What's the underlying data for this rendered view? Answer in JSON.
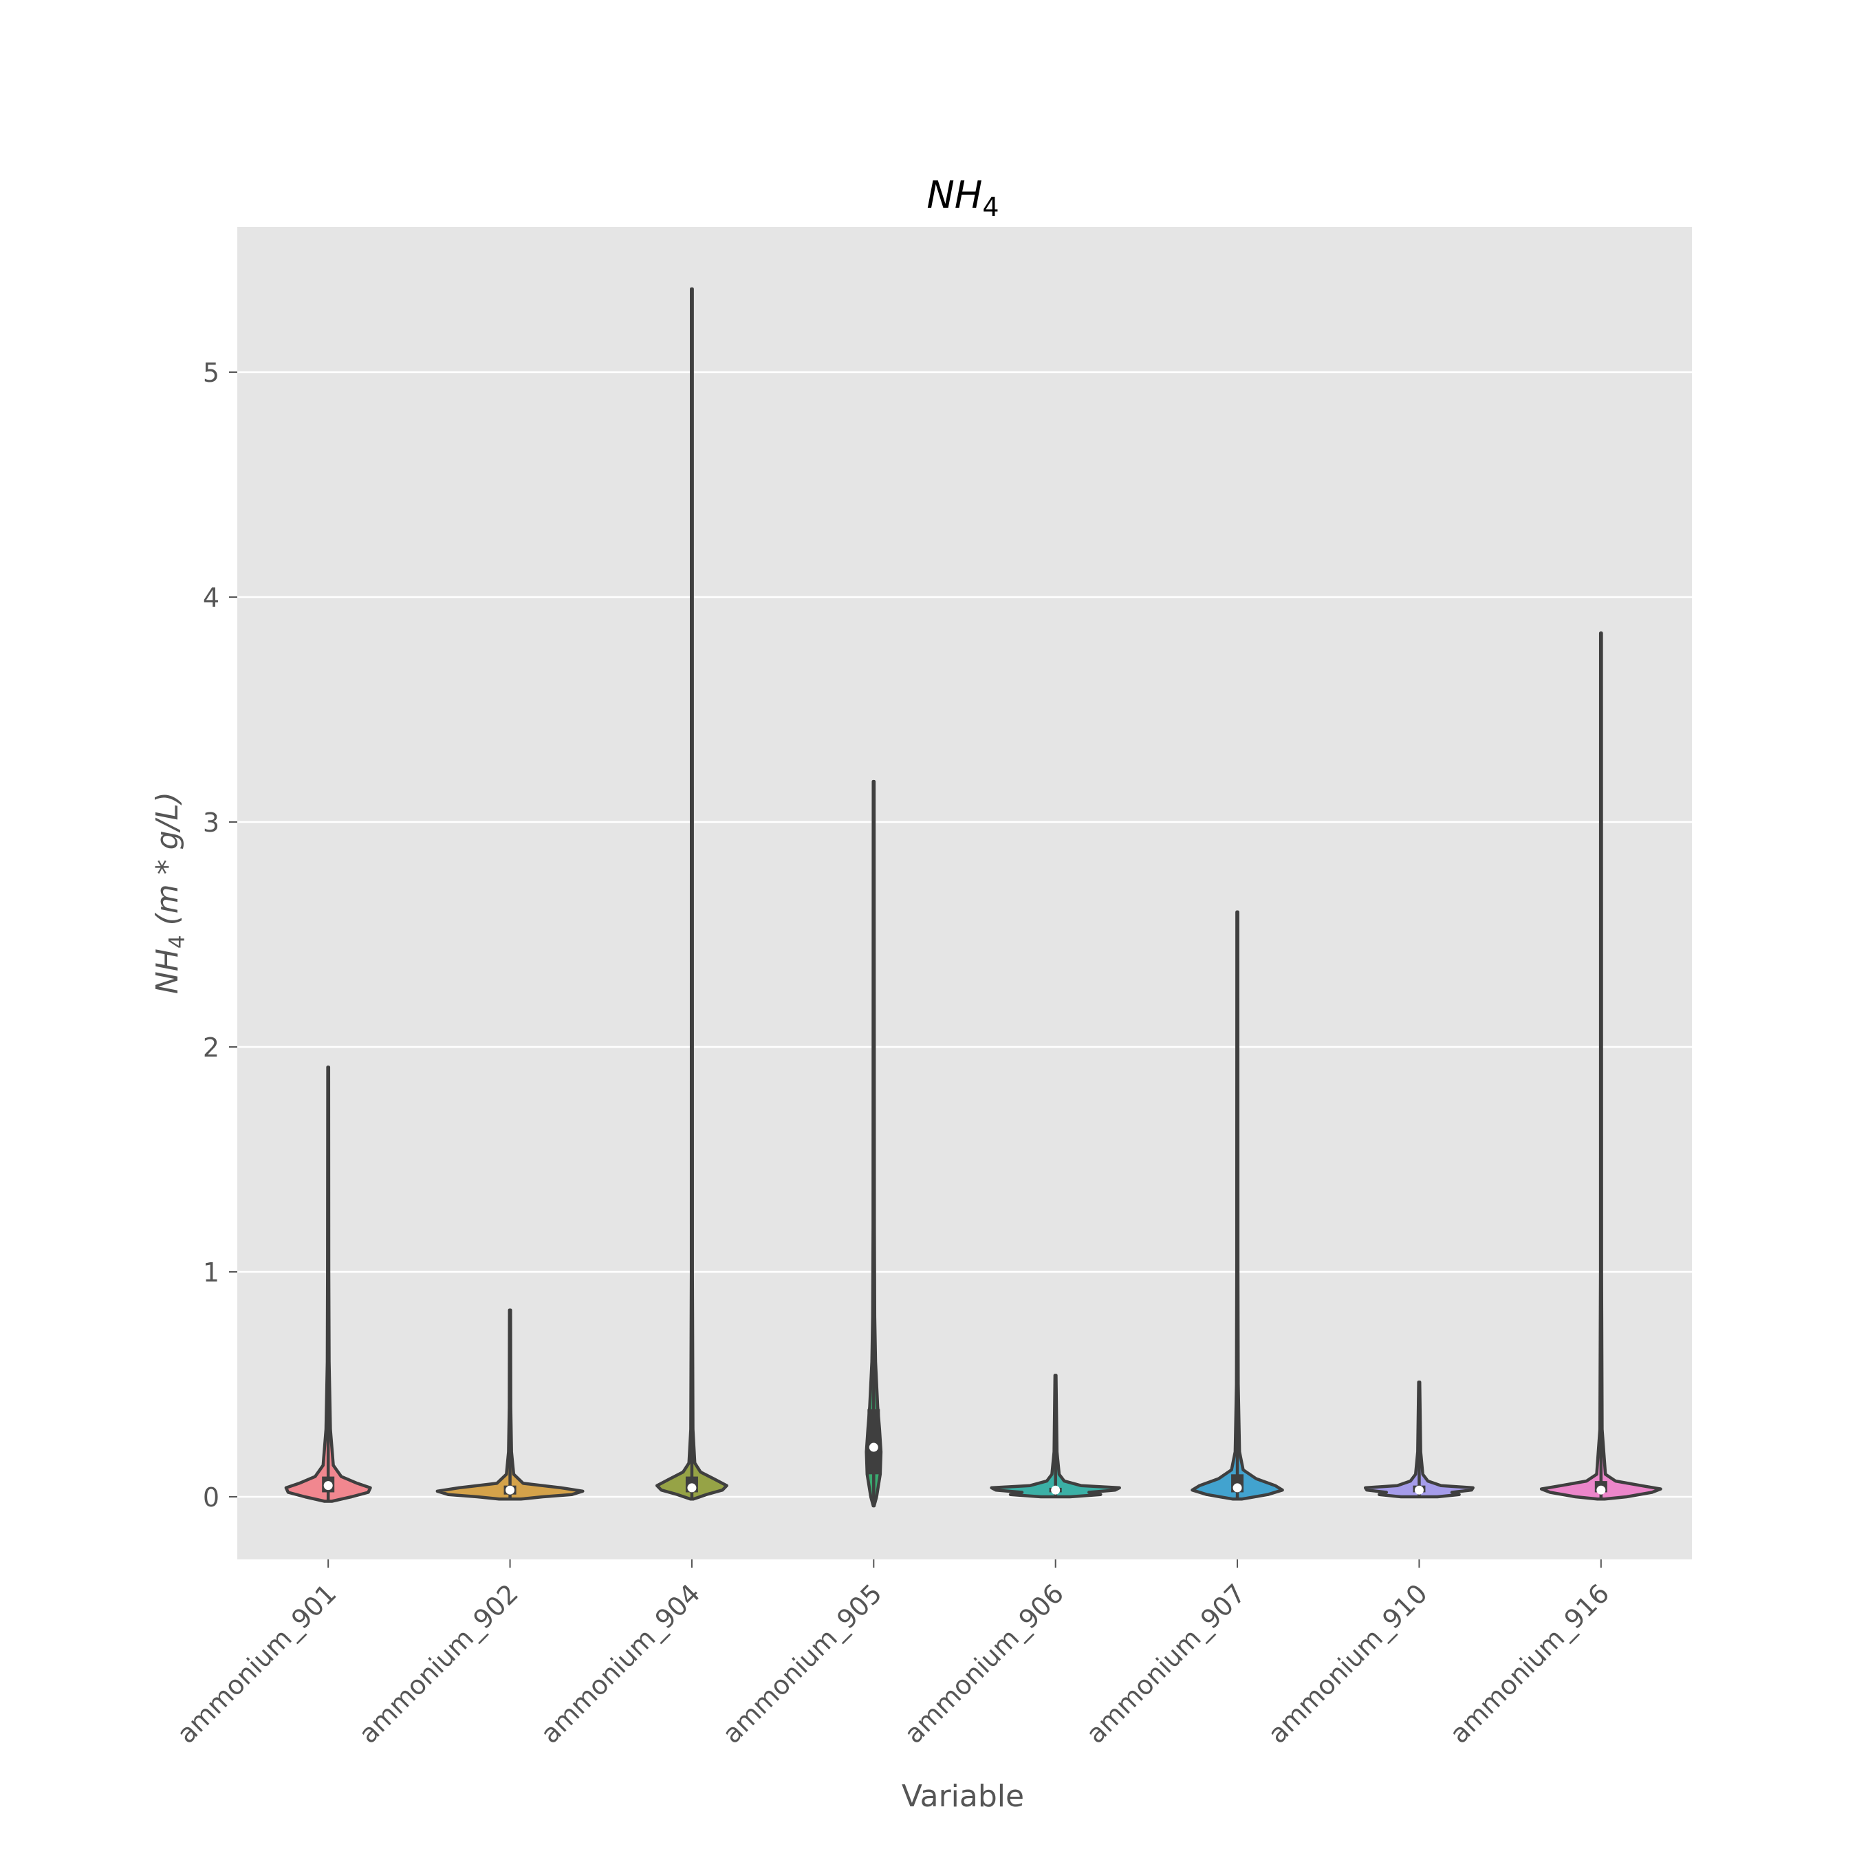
{
  "chart_data": {
    "type": "violin",
    "title": "NH",
    "title_sub": "4",
    "xlabel": "Variable",
    "ylabel_main": "NH",
    "ylabel_sub": "4",
    "ylabel_rest": " (m * g/L)",
    "ylim": [
      -0.3,
      5.65
    ],
    "yticks": [
      0,
      1,
      2,
      3,
      4,
      5
    ],
    "ytick_labels": [
      "0",
      "1",
      "2",
      "3",
      "4",
      "5"
    ],
    "grid": true,
    "categories": [
      "ammonium_901",
      "ammonium_902",
      "ammonium_904",
      "ammonium_905",
      "ammonium_906",
      "ammonium_907",
      "ammonium_910",
      "ammonium_916"
    ],
    "series": [
      {
        "category": "ammonium_901",
        "color": "#f1878f",
        "min": -0.02,
        "max": 1.91,
        "q1": 0.02,
        "median": 0.05,
        "q3": 0.09,
        "profile": [
          [
            -0.02,
            0.05
          ],
          [
            0.0,
            0.32
          ],
          [
            0.02,
            0.55
          ],
          [
            0.04,
            0.58
          ],
          [
            0.06,
            0.4
          ],
          [
            0.09,
            0.18
          ],
          [
            0.14,
            0.07
          ],
          [
            0.3,
            0.03
          ],
          [
            0.6,
            0.012
          ],
          [
            1.0,
            0.008
          ],
          [
            1.91,
            0.006
          ]
        ]
      },
      {
        "category": "ammonium_902",
        "color": "#d4a24a",
        "min": -0.01,
        "max": 0.83,
        "q1": 0.01,
        "median": 0.03,
        "q3": 0.05,
        "profile": [
          [
            -0.01,
            0.15
          ],
          [
            0.0,
            0.45
          ],
          [
            0.01,
            0.85
          ],
          [
            0.025,
            1.0
          ],
          [
            0.04,
            0.7
          ],
          [
            0.06,
            0.18
          ],
          [
            0.1,
            0.05
          ],
          [
            0.2,
            0.02
          ],
          [
            0.4,
            0.01
          ],
          [
            0.83,
            0.007
          ]
        ]
      },
      {
        "category": "ammonium_904",
        "color": "#96a346",
        "min": -0.01,
        "max": 5.37,
        "q1": 0.02,
        "median": 0.04,
        "q3": 0.09,
        "profile": [
          [
            -0.01,
            0.02
          ],
          [
            0.01,
            0.2
          ],
          [
            0.03,
            0.42
          ],
          [
            0.05,
            0.48
          ],
          [
            0.08,
            0.3
          ],
          [
            0.11,
            0.12
          ],
          [
            0.15,
            0.04
          ],
          [
            0.3,
            0.015
          ],
          [
            1.0,
            0.007
          ],
          [
            5.37,
            0.006
          ]
        ]
      },
      {
        "category": "ammonium_905",
        "color": "#3aaa70",
        "min": -0.04,
        "max": 3.18,
        "q1": 0.1,
        "median": 0.22,
        "q3": 0.39,
        "profile": [
          [
            -0.04,
            0.006
          ],
          [
            0.0,
            0.04
          ],
          [
            0.1,
            0.09
          ],
          [
            0.2,
            0.1
          ],
          [
            0.3,
            0.08
          ],
          [
            0.4,
            0.055
          ],
          [
            0.6,
            0.025
          ],
          [
            0.8,
            0.014
          ],
          [
            1.2,
            0.009
          ],
          [
            3.18,
            0.006
          ]
        ]
      },
      {
        "category": "ammonium_906",
        "color": "#3bb0a6",
        "min": 0.0,
        "max": 0.54,
        "q1": 0.02,
        "median": 0.03,
        "q3": 0.04,
        "profile": [
          [
            0.0,
            0.2
          ],
          [
            0.01,
            0.62
          ],
          [
            0.02,
            0.46
          ],
          [
            0.03,
            0.82
          ],
          [
            0.04,
            0.88
          ],
          [
            0.05,
            0.35
          ],
          [
            0.07,
            0.12
          ],
          [
            0.1,
            0.05
          ],
          [
            0.2,
            0.02
          ],
          [
            0.54,
            0.007
          ]
        ]
      },
      {
        "category": "ammonium_907",
        "color": "#42a3cf",
        "min": -0.01,
        "max": 2.6,
        "q1": 0.02,
        "median": 0.04,
        "q3": 0.1,
        "profile": [
          [
            -0.01,
            0.06
          ],
          [
            0.01,
            0.42
          ],
          [
            0.03,
            0.62
          ],
          [
            0.05,
            0.52
          ],
          [
            0.08,
            0.26
          ],
          [
            0.12,
            0.08
          ],
          [
            0.2,
            0.03
          ],
          [
            0.5,
            0.012
          ],
          [
            1.0,
            0.008
          ],
          [
            2.6,
            0.006
          ]
        ]
      },
      {
        "category": "ammonium_910",
        "color": "#a59cea",
        "min": 0.0,
        "max": 0.51,
        "q1": 0.02,
        "median": 0.03,
        "q3": 0.05,
        "profile": [
          [
            0.0,
            0.25
          ],
          [
            0.01,
            0.55
          ],
          [
            0.02,
            0.45
          ],
          [
            0.03,
            0.72
          ],
          [
            0.04,
            0.74
          ],
          [
            0.05,
            0.3
          ],
          [
            0.07,
            0.12
          ],
          [
            0.1,
            0.05
          ],
          [
            0.2,
            0.02
          ],
          [
            0.51,
            0.007
          ]
        ]
      },
      {
        "category": "ammonium_916",
        "color": "#ec86ca",
        "min": -0.01,
        "max": 3.84,
        "q1": 0.02,
        "median": 0.03,
        "q3": 0.07,
        "profile": [
          [
            -0.01,
            0.05
          ],
          [
            0.0,
            0.35
          ],
          [
            0.02,
            0.7
          ],
          [
            0.035,
            0.82
          ],
          [
            0.05,
            0.55
          ],
          [
            0.07,
            0.2
          ],
          [
            0.1,
            0.06
          ],
          [
            0.3,
            0.015
          ],
          [
            1.0,
            0.007
          ],
          [
            3.84,
            0.006
          ]
        ]
      }
    ]
  }
}
